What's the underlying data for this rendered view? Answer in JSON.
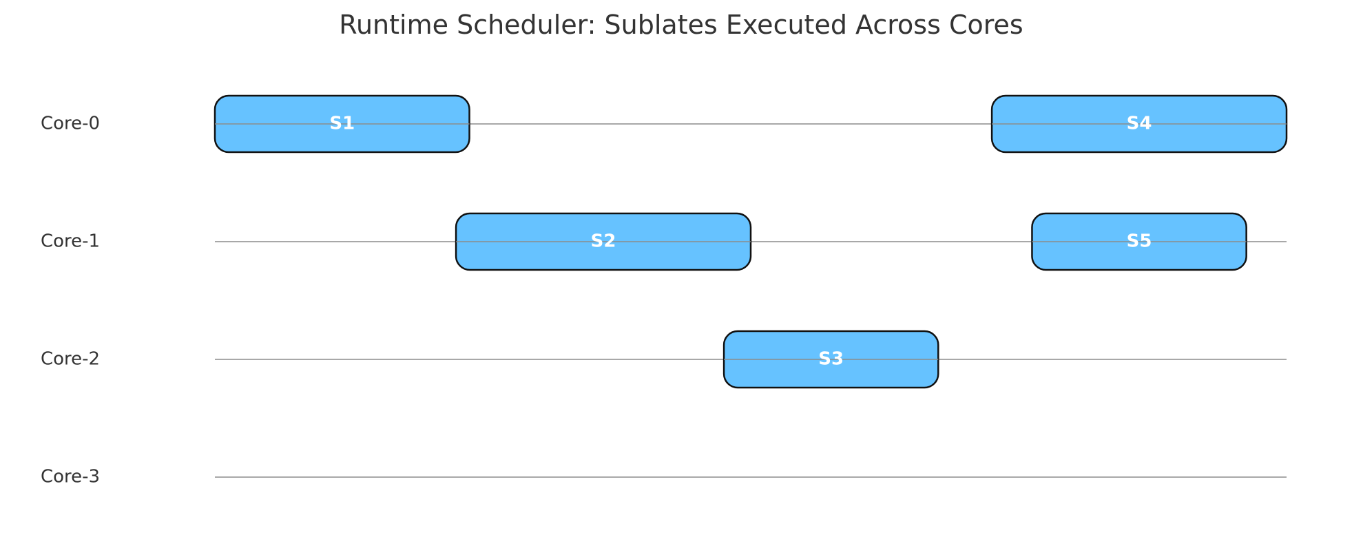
{
  "chart_data": {
    "type": "gantt",
    "title": "Runtime Scheduler: Sublates Executed Across Cores",
    "rows": [
      "Core-0",
      "Core-1",
      "Core-2",
      "Core-3"
    ],
    "x_range": [
      0,
      4.0
    ],
    "tasks": [
      {
        "label": "S1",
        "row": "Core-0",
        "start": 0.0,
        "end": 0.95
      },
      {
        "label": "S4",
        "row": "Core-0",
        "start": 2.9,
        "end": 4.0
      },
      {
        "label": "S2",
        "row": "Core-1",
        "start": 0.9,
        "end": 2.0
      },
      {
        "label": "S5",
        "row": "Core-1",
        "start": 3.05,
        "end": 3.85
      },
      {
        "label": "S3",
        "row": "Core-2",
        "start": 1.9,
        "end": 2.7
      }
    ],
    "bar_color": "#66c2ff",
    "bar_edge_color": "#111111",
    "label_color": "#ffffff",
    "lane_color": "#8c8c8c",
    "grid": false,
    "axes_visible": false
  }
}
